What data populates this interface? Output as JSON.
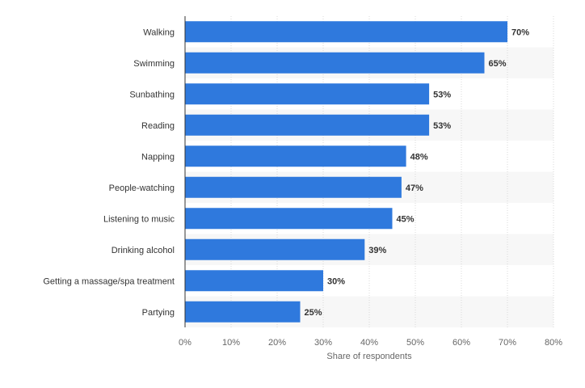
{
  "chart_data": {
    "type": "bar",
    "orientation": "horizontal",
    "categories": [
      "Walking",
      "Swimming",
      "Sunbathing",
      "Reading",
      "Napping",
      "People-watching",
      "Listening to music",
      "Drinking alcohol",
      "Getting a massage/spa treatment",
      "Partying"
    ],
    "values": [
      70,
      65,
      53,
      53,
      48,
      47,
      45,
      39,
      30,
      25
    ],
    "value_labels": [
      "70%",
      "65%",
      "53%",
      "53%",
      "48%",
      "47%",
      "45%",
      "39%",
      "30%",
      "25%"
    ],
    "xlabel": "Share of respondents",
    "ylabel": "",
    "xlim": [
      0,
      80
    ],
    "ticks": [
      0,
      10,
      20,
      30,
      40,
      50,
      60,
      70,
      80
    ],
    "tick_labels": [
      "0%",
      "10%",
      "20%",
      "30%",
      "40%",
      "50%",
      "60%",
      "70%",
      "80%"
    ],
    "grid": true,
    "bar_color": "#2f79dd",
    "stripe_color": "#f7f7f7",
    "grid_color": "#d9d9d9"
  }
}
